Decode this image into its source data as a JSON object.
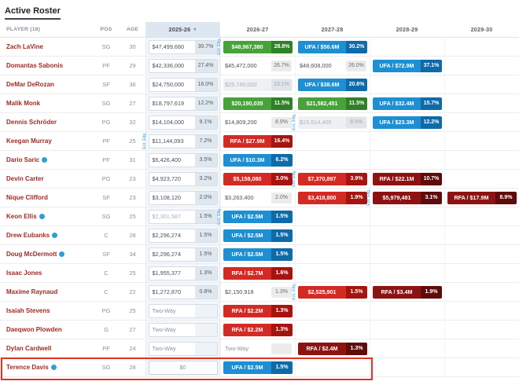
{
  "title": "Active Roster",
  "ext_label": "Ext. Elig.",
  "sort": {
    "sorted_column": "2025-26",
    "direction_icon": "▼"
  },
  "columns": {
    "player": "PLAYER (18)",
    "pos": "POS",
    "age": "AGE",
    "years": [
      "2025-26",
      "2026-27",
      "2027-28",
      "2028-29",
      "2029-30"
    ]
  },
  "colors": {
    "green": [
      "#47a23a",
      "#2f8127"
    ],
    "blue": [
      "#1d8fd2",
      "#0f6aa8"
    ],
    "red": [
      "#d42a24",
      "#a61410"
    ],
    "darkred": [
      "#8d1313",
      "#5f0b0b"
    ],
    "highlight_border": "#e03226",
    "player_name": "#9e2a25",
    "ext_text": "#2fa1dc"
  },
  "players": [
    {
      "name": "Zach LaVine",
      "icon": false,
      "pos": "SG",
      "age": "30",
      "y2025": {
        "type": "salary",
        "amount": "$47,499,660",
        "pct": "30.7%"
      },
      "future": [
        {
          "style": "green",
          "label": "$48,967,380",
          "pct": "28.8%",
          "ext": true
        },
        {
          "style": "blue",
          "label": "UFA / $56.6M",
          "pct": "30.2%"
        },
        null,
        null
      ]
    },
    {
      "name": "Domantas Sabonis",
      "icon": false,
      "pos": "PF",
      "age": "29",
      "y2025": {
        "type": "salary",
        "amount": "$42,336,000",
        "pct": "27.4%"
      },
      "future": [
        {
          "style": "plain",
          "label": "$45,472,000",
          "pct": "26.7%"
        },
        {
          "style": "plain",
          "label": "$48,608,000",
          "pct": "26.0%"
        },
        {
          "style": "blue",
          "label": "UFA / $72.9M",
          "pct": "37.1%"
        },
        null
      ]
    },
    {
      "name": "DeMar DeRozan",
      "icon": false,
      "pos": "SF",
      "age": "36",
      "y2025": {
        "type": "salary",
        "amount": "$24,750,000",
        "pct": "16.0%"
      },
      "future": [
        {
          "style": "muted",
          "label": "$25,740,000",
          "pct": "15.1%"
        },
        {
          "style": "blue",
          "label": "UFA / $38.6M",
          "pct": "20.6%"
        },
        null,
        null
      ]
    },
    {
      "name": "Malik Monk",
      "icon": false,
      "pos": "SG",
      "age": "27",
      "y2025": {
        "type": "salary",
        "amount": "$18,797,619",
        "pct": "12.2%"
      },
      "future": [
        {
          "style": "green",
          "label": "$20,190,035",
          "pct": "11.5%"
        },
        {
          "style": "green",
          "label": "$21,582,451",
          "pct": "11.5%"
        },
        {
          "style": "blue",
          "label": "UFA / $32.4M",
          "pct": "15.7%"
        },
        null
      ]
    },
    {
      "name": "Dennis Schröder",
      "icon": false,
      "pos": "PG",
      "age": "32",
      "y2025": {
        "type": "salary",
        "amount": "$14,104,000",
        "pct": "9.1%"
      },
      "future": [
        {
          "style": "plain",
          "label": "$14,809,200",
          "pct": "8.9%"
        },
        {
          "style": "muted",
          "label": "$15,514,400",
          "pct": "8.5%",
          "ext": true
        },
        {
          "style": "blue",
          "label": "UFA / $23.3M",
          "pct": "12.2%"
        },
        null
      ]
    },
    {
      "name": "Keegan Murray",
      "icon": false,
      "pos": "PF",
      "age": "25",
      "y2025": {
        "type": "salary",
        "amount": "$11,144,093",
        "pct": "7.2%",
        "ext": true
      },
      "future": [
        {
          "style": "red",
          "label": "RFA / $27.9M",
          "pct": "16.4%"
        },
        null,
        null,
        null
      ]
    },
    {
      "name": "Dario Saric",
      "icon": true,
      "pos": "PF",
      "age": "31",
      "y2025": {
        "type": "salary",
        "amount": "$5,426,400",
        "pct": "3.5%"
      },
      "future": [
        {
          "style": "blue",
          "label": "UFA / $10.3M",
          "pct": "6.2%"
        },
        null,
        null,
        null
      ]
    },
    {
      "name": "Devin Carter",
      "icon": false,
      "pos": "PG",
      "age": "23",
      "y2025": {
        "type": "salary",
        "amount": "$4,923,720",
        "pct": "3.2%"
      },
      "future": [
        {
          "style": "red",
          "label": "$5,158,080",
          "pct": "3.0%"
        },
        {
          "style": "red",
          "label": "$7,370,897",
          "pct": "3.9%",
          "ext": true
        },
        {
          "style": "darkred",
          "label": "RFA / $22.1M",
          "pct": "10.7%"
        },
        null
      ]
    },
    {
      "name": "Nique Clifford",
      "icon": false,
      "pos": "SF",
      "age": "23",
      "y2025": {
        "type": "salary",
        "amount": "$3,108,120",
        "pct": "2.0%"
      },
      "future": [
        {
          "style": "plain",
          "label": "$3,263,400",
          "pct": "2.0%"
        },
        {
          "style": "red",
          "label": "$3,418,800",
          "pct": "1.9%"
        },
        {
          "style": "darkred",
          "label": "$5,979,481",
          "pct": "3.1%",
          "ext": true
        },
        {
          "style": "darkred",
          "label": "RFA / $17.9M",
          "pct": "8.9%"
        }
      ]
    },
    {
      "name": "Keon Ellis",
      "icon": true,
      "pos": "SG",
      "age": "25",
      "y2025": {
        "type": "salary",
        "amount": "$2,301,587",
        "pct": "1.5%",
        "muted": true
      },
      "future": [
        {
          "style": "blue",
          "label": "UFA / $2.5M",
          "pct": "1.5%",
          "ext": true
        },
        null,
        null,
        null
      ]
    },
    {
      "name": "Drew Eubanks",
      "icon": true,
      "pos": "C",
      "age": "28",
      "y2025": {
        "type": "salary",
        "amount": "$2,296,274",
        "pct": "1.5%"
      },
      "future": [
        {
          "style": "blue",
          "label": "UFA / $2.5M",
          "pct": "1.5%"
        },
        null,
        null,
        null
      ]
    },
    {
      "name": "Doug McDermott",
      "icon": true,
      "pos": "SF",
      "age": "34",
      "y2025": {
        "type": "salary",
        "amount": "$2,296,274",
        "pct": "1.5%"
      },
      "future": [
        {
          "style": "blue",
          "label": "UFA / $2.5M",
          "pct": "1.5%"
        },
        null,
        null,
        null
      ]
    },
    {
      "name": "Isaac Jones",
      "icon": false,
      "pos": "C",
      "age": "25",
      "y2025": {
        "type": "salary",
        "amount": "$1,955,377",
        "pct": "1.3%"
      },
      "future": [
        {
          "style": "red",
          "label": "RFA / $2.7M",
          "pct": "1.6%"
        },
        null,
        null,
        null
      ]
    },
    {
      "name": "Maxime Raynaud",
      "icon": false,
      "pos": "C",
      "age": "22",
      "y2025": {
        "type": "salary",
        "amount": "$1,272,870",
        "pct": "0.8%"
      },
      "future": [
        {
          "style": "plain",
          "label": "$2,150,918",
          "pct": "1.3%"
        },
        {
          "style": "red",
          "label": "$2,525,901",
          "pct": "1.5%",
          "ext": true
        },
        {
          "style": "darkred",
          "label": "RFA / $3.4M",
          "pct": "1.9%"
        },
        null
      ]
    },
    {
      "name": "Isaiah Stevens",
      "icon": false,
      "pos": "PG",
      "age": "25",
      "y2025": {
        "type": "twoway",
        "amount": "Two-Way"
      },
      "future": [
        {
          "style": "red",
          "label": "RFA / $2.2M",
          "pct": "1.3%"
        },
        null,
        null,
        null
      ]
    },
    {
      "name": "Daeqwon Plowden",
      "icon": false,
      "pos": "G",
      "age": "27",
      "y2025": {
        "type": "twoway",
        "amount": "Two-Way"
      },
      "future": [
        {
          "style": "red",
          "label": "RFA / $2.2M",
          "pct": "1.3%"
        },
        null,
        null,
        null
      ]
    },
    {
      "name": "Dylan Cardwell",
      "icon": false,
      "pos": "PF",
      "age": "24",
      "y2025": {
        "type": "twoway",
        "amount": "Two-Way"
      },
      "future": [
        {
          "style": "twoway",
          "label": "Two-Way"
        },
        {
          "style": "darkred",
          "label": "RFA / $2.4M",
          "pct": "1.3%"
        },
        null,
        null
      ]
    },
    {
      "name": "Terence Davis",
      "icon": true,
      "pos": "SG",
      "age": "28",
      "highlight": true,
      "y2025": {
        "type": "input",
        "amount": "$0"
      },
      "future": [
        {
          "style": "blue",
          "label": "UFA / $2.5M",
          "pct": "1.5%"
        },
        null,
        null,
        null
      ]
    }
  ]
}
